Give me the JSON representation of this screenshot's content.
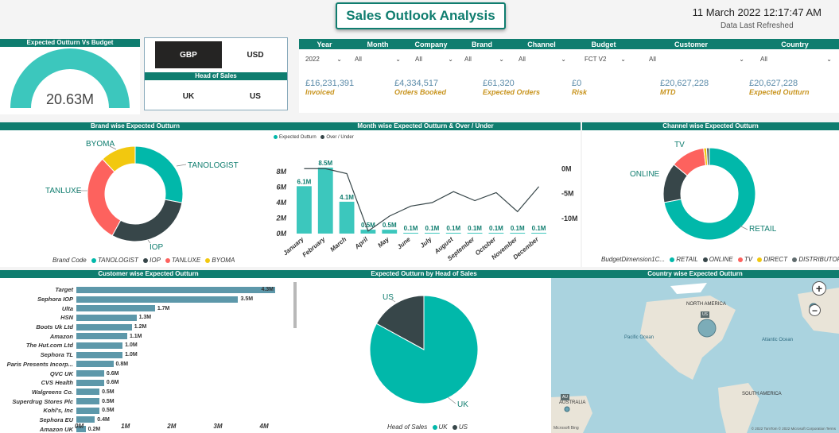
{
  "header": {
    "title": "Sales Outlook Analysis",
    "datetime": "11 March 2022 12:17:47 AM",
    "refreshed": "Data Last Refreshed"
  },
  "gauge": {
    "title": "Expected Outturn Vs Budget",
    "value": "20.63M",
    "fraction": 1.0,
    "color": "#3cc7bd"
  },
  "currency": {
    "options": [
      "GBP",
      "USD"
    ],
    "selected": "GBP"
  },
  "head_of_sales": {
    "title": "Head of Sales",
    "options": [
      "UK",
      "US"
    ]
  },
  "filters": {
    "headers": [
      "Year",
      "Month",
      "Company",
      "Brand",
      "Channel",
      "Budget",
      "Customer",
      "Country"
    ],
    "values": [
      "2022",
      "All",
      "All",
      "All",
      "All",
      "FCT V2",
      "All",
      "All"
    ]
  },
  "kpis": [
    {
      "value": "£16,231,391",
      "label": "Invoiced"
    },
    {
      "value": "£4,334,517",
      "label": "Orders Booked"
    },
    {
      "value": "£61,320",
      "label": "Expected Orders"
    },
    {
      "value": "£0",
      "label": "Risk"
    },
    {
      "value": "£20,627,228",
      "label": "MTD"
    },
    {
      "value": "£20,627,228",
      "label": "Expected Outturn"
    }
  ],
  "brand_chart": {
    "title": "Brand wise Expected Outturn",
    "legend_title": "Brand Code",
    "chart_data": {
      "type": "pie",
      "labels": [
        "TANOLOGIST",
        "IOP",
        "TANLUXE",
        "BYOMA"
      ],
      "values": [
        28,
        30,
        30,
        12
      ],
      "colors": [
        "#01b8aa",
        "#374649",
        "#fd625e",
        "#f2c80f"
      ]
    }
  },
  "month_chart": {
    "title": "Month wise Expected Outturn & Over / Under",
    "legend": [
      "Expected Outturn",
      "Over / Under"
    ],
    "chart_data": {
      "type": "bar",
      "categories": [
        "January",
        "February",
        "March",
        "April",
        "May",
        "June",
        "July",
        "August",
        "September",
        "October",
        "November",
        "December"
      ],
      "series": [
        {
          "name": "Expected Outturn",
          "values": [
            6.1,
            8.5,
            4.1,
            0.5,
            0.5,
            0.1,
            0.1,
            0.1,
            0.1,
            0.1,
            0.1,
            0.1
          ],
          "labels": [
            "6.1M",
            "8.5M",
            "4.1M",
            "0.5M",
            "0.5M",
            "0.1M",
            "0.1M",
            "0.1M",
            "0.1M",
            "0.1M",
            "0.1M",
            "0.1M"
          ]
        },
        {
          "name": "Over / Under",
          "values": [
            0,
            0,
            -1,
            -12.5,
            -9.5,
            -7.5,
            -6.8,
            -4.6,
            -6.4,
            -4.8,
            -8.6,
            -3.6
          ]
        }
      ],
      "y_ticks": [
        "0M",
        "2M",
        "4M",
        "6M",
        "8M"
      ],
      "y2_ticks": [
        "0M",
        "-5M",
        "-10M"
      ],
      "ylim": [
        0,
        9
      ],
      "y2lim": [
        -13,
        1
      ]
    }
  },
  "channel_chart": {
    "title": "Channel wise Expected Outturn",
    "legend_title": "BudgetDimension1C...",
    "chart_data": {
      "type": "pie",
      "labels": [
        "RETAIL",
        "ONLINE",
        "TV",
        "DIRECT",
        "DISTRIBUTORS"
      ],
      "values": [
        72,
        14,
        12,
        1,
        1
      ],
      "colors": [
        "#01b8aa",
        "#374649",
        "#fd625e",
        "#f2c80f",
        "#5f6b6d"
      ],
      "shown_labels": [
        "RETAIL",
        "ONLINE",
        "TV"
      ]
    }
  },
  "customer_chart": {
    "title": "Customer wise Expected Outturn",
    "chart_data": {
      "type": "bar",
      "categories": [
        "Target",
        "Sephora IOP",
        "Ulta",
        "HSN",
        "Boots Uk Ltd",
        "Amazon",
        "The Hut.com Ltd",
        "Sephora TL",
        "Paris Presents Incorp...",
        "QVC UK",
        "CVS Health",
        "Walgreens Co.",
        "Superdrug Stores Plc",
        "Kohl's, Inc",
        "Sephora EU",
        "Amazon UK"
      ],
      "values": [
        4.3,
        3.5,
        1.7,
        1.3,
        1.2,
        1.1,
        1.0,
        1.0,
        0.8,
        0.6,
        0.6,
        0.5,
        0.5,
        0.5,
        0.4,
        0.2
      ],
      "labels": [
        "4.3M",
        "3.5M",
        "1.7M",
        "1.3M",
        "1.2M",
        "1.1M",
        "1.0M",
        "1.0M",
        "0.8M",
        "0.6M",
        "0.6M",
        "0.5M",
        "0.5M",
        "0.5M",
        "0.4M",
        "0.2M"
      ],
      "x_ticks": [
        "0M",
        "1M",
        "2M",
        "3M",
        "4M"
      ],
      "xlim": [
        0,
        4.3
      ]
    }
  },
  "hos_chart": {
    "title": "Expected Outturn by Head of Sales",
    "legend_title": "Head of Sales",
    "chart_data": {
      "type": "pie",
      "labels": [
        "UK",
        "US"
      ],
      "values": [
        83,
        17
      ],
      "colors": [
        "#01b8aa",
        "#374649"
      ]
    }
  },
  "map": {
    "title": "Country wise Expected Outturn",
    "labels": [
      "NORTH AMERICA",
      "SOUTH AMERICA",
      "AUSTRALIA",
      "Pacific Ocean",
      "Atlantic Ocean"
    ],
    "badges": [
      "US",
      "AU"
    ],
    "zoom_in": "+",
    "zoom_out": "−",
    "credit": "© 2022 TomTom  © 2022 Microsoft Corporation  Terms",
    "brand": "Microsoft Bing"
  }
}
